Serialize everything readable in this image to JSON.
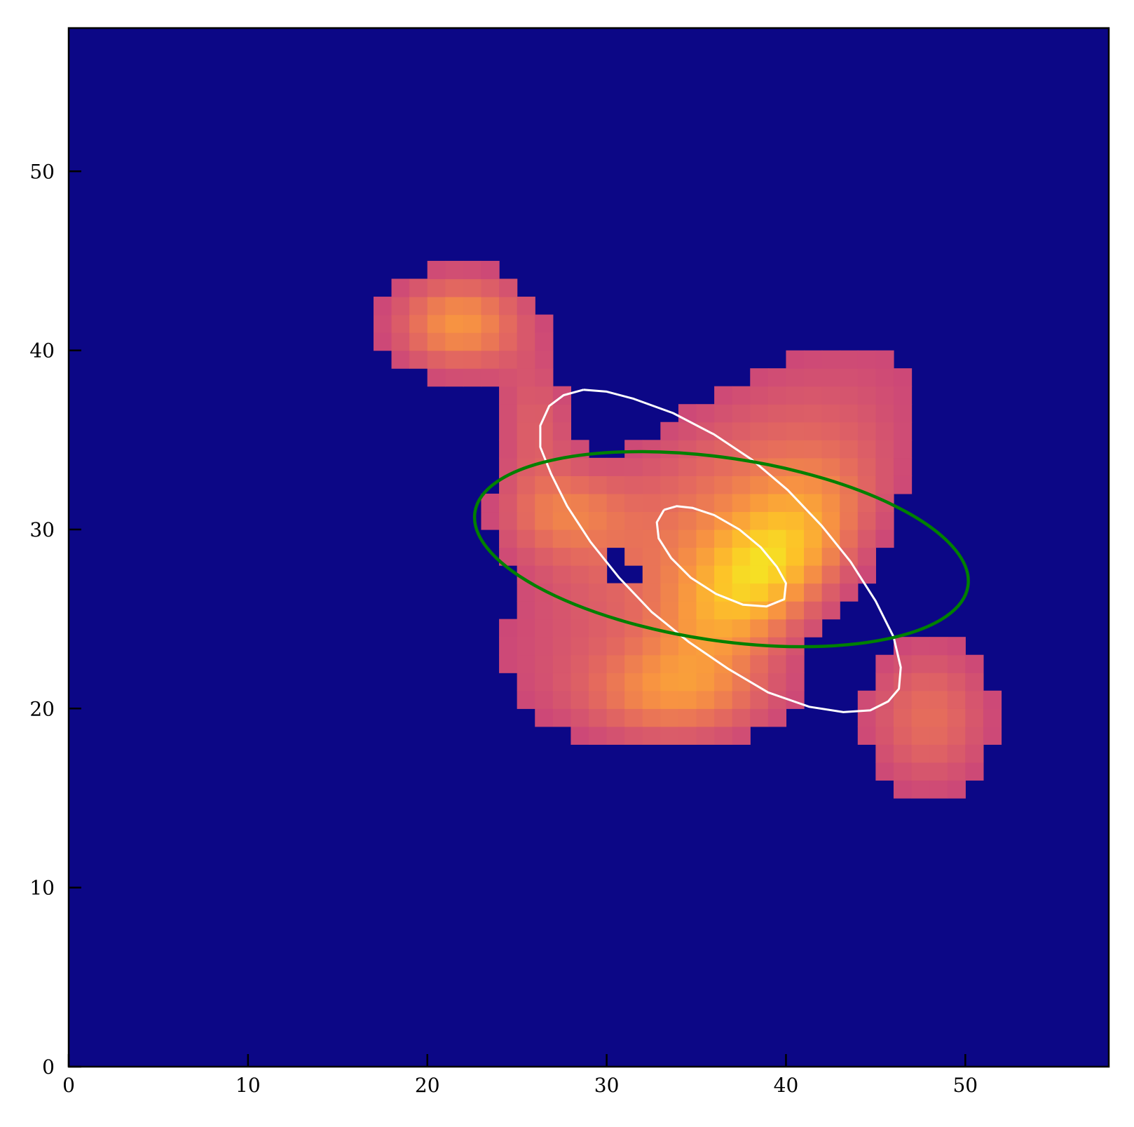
{
  "chart_data": {
    "type": "heatmap",
    "title": "",
    "xlabel": "",
    "ylabel": "",
    "xlim": [
      0,
      58
    ],
    "ylim": [
      0,
      58
    ],
    "xticks": [
      0,
      10,
      20,
      30,
      40,
      50
    ],
    "yticks": [
      0,
      10,
      20,
      30,
      40,
      50
    ],
    "xtick_labels": [
      "0",
      "10",
      "20",
      "30",
      "40",
      "50"
    ],
    "ytick_labels": [
      "0",
      "10",
      "20",
      "30",
      "40",
      "50"
    ],
    "grid": false,
    "colormap": "plasma",
    "background_color": "#0c0786",
    "image": {
      "description_units": "pixel grid, 1 data unit per cell",
      "components": [
        {
          "cx": 21.8,
          "cy": 41.5,
          "sx": 2.6,
          "sy": 1.9,
          "rot_deg": 0,
          "amp": 0.55
        },
        {
          "cx": 38.7,
          "cy": 27.6,
          "sx": 2.3,
          "sy": 4.6,
          "rot_deg": -45,
          "amp": 0.75
        },
        {
          "cx": 35.5,
          "cy": 31.0,
          "sx": 3.5,
          "sy": 9.0,
          "rot_deg": -52,
          "amp": 0.35
        },
        {
          "cx": 34.0,
          "cy": 20.8,
          "sx": 4.0,
          "sy": 1.9,
          "rot_deg": 0,
          "amp": 0.42
        },
        {
          "cx": 48.0,
          "cy": 19.5,
          "sx": 2.5,
          "sy": 3.0,
          "rot_deg": 0,
          "amp": 0.35
        },
        {
          "cx": 27.5,
          "cy": 31.0,
          "sx": 2.5,
          "sy": 1.8,
          "rot_deg": 0,
          "amp": 0.35
        },
        {
          "cx": 26.0,
          "cy": 36.0,
          "sx": 1.5,
          "sy": 2.5,
          "rot_deg": 0,
          "amp": 0.25
        }
      ],
      "threshold": 0.12,
      "holes": [
        [
          30,
          28
        ],
        [
          30,
          27
        ],
        [
          31,
          27
        ]
      ]
    },
    "overlays": [
      {
        "name": "outer-contour",
        "type": "polyline",
        "color": "#ffffff",
        "points": [
          [
            28.7,
            37.8
          ],
          [
            27.6,
            37.5
          ],
          [
            26.8,
            36.9
          ],
          [
            26.3,
            35.8
          ],
          [
            26.3,
            34.6
          ],
          [
            26.9,
            33.1
          ],
          [
            27.8,
            31.3
          ],
          [
            29.1,
            29.3
          ],
          [
            30.7,
            27.3
          ],
          [
            32.5,
            25.4
          ],
          [
            34.6,
            23.7
          ],
          [
            36.8,
            22.2
          ],
          [
            39.0,
            20.9
          ],
          [
            41.3,
            20.1
          ],
          [
            43.2,
            19.8
          ],
          [
            44.7,
            19.9
          ],
          [
            45.7,
            20.4
          ],
          [
            46.3,
            21.1
          ],
          [
            46.4,
            22.3
          ],
          [
            46.0,
            24.0
          ],
          [
            45.0,
            26.0
          ],
          [
            43.6,
            28.2
          ],
          [
            42.0,
            30.2
          ],
          [
            40.1,
            32.2
          ],
          [
            38.1,
            33.9
          ],
          [
            36.0,
            35.3
          ],
          [
            33.7,
            36.5
          ],
          [
            31.5,
            37.3
          ],
          [
            30.0,
            37.7
          ],
          [
            28.7,
            37.8
          ]
        ]
      },
      {
        "name": "inner-contour",
        "type": "polyline",
        "color": "#ffffff",
        "points": [
          [
            33.2,
            31.1
          ],
          [
            32.8,
            30.4
          ],
          [
            32.9,
            29.5
          ],
          [
            33.6,
            28.4
          ],
          [
            34.7,
            27.3
          ],
          [
            36.1,
            26.4
          ],
          [
            37.6,
            25.8
          ],
          [
            38.9,
            25.7
          ],
          [
            39.9,
            26.1
          ],
          [
            40.0,
            27.0
          ],
          [
            39.5,
            27.9
          ],
          [
            38.6,
            29.0
          ],
          [
            37.4,
            30.0
          ],
          [
            36.0,
            30.8
          ],
          [
            34.8,
            31.2
          ],
          [
            33.9,
            31.3
          ],
          [
            33.2,
            31.1
          ]
        ]
      },
      {
        "name": "fit-ellipse",
        "type": "ellipse",
        "color": "#008000",
        "center": [
          36.4,
          28.9
        ],
        "semi_major": 13.9,
        "semi_minor": 5.1,
        "angle_deg": -8.5
      }
    ]
  }
}
